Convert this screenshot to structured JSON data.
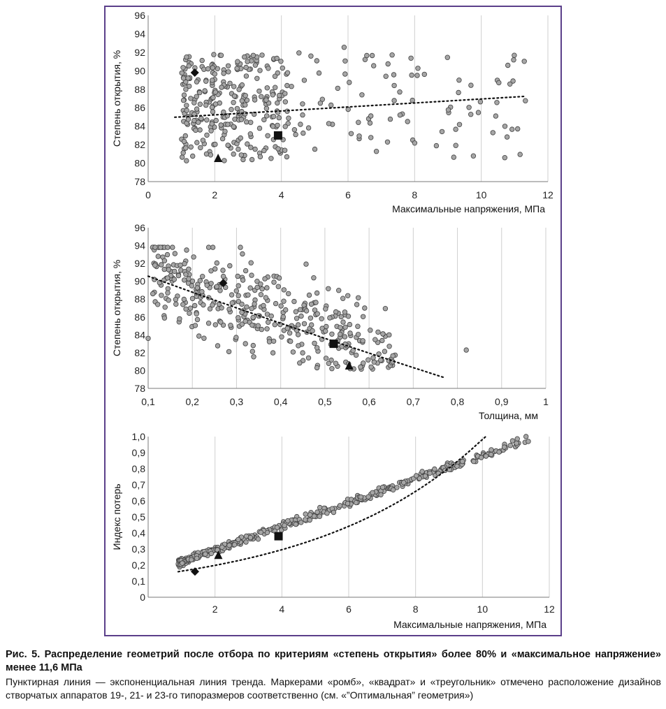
{
  "caption": {
    "title": "Рис. 5. Распределение геометрий после отбора по критериям «степень открытия» более 80% и «максимальное напряжение» менее 11,6 МПа",
    "body": "Пунктирная линия — экспоненциальная линия тренда. Маркерами «ромб», «квадрат» и «треугольник» отмечено расположение дизайнов створчатых аппаратов 19-, 21- и 23-го типоразмеров соответственно (см. «”Оптимальная” геометрия»)"
  },
  "colors": {
    "frame": "#5b3f8a",
    "point_fill": "#a6a6a6",
    "point_stroke": "#404040",
    "marker": "#111111",
    "grid": "#cfcfcf"
  },
  "chart_data": [
    {
      "type": "scatter",
      "xlabel": "Максимальные напряжения, МПа",
      "ylabel": "Степень открытия, %",
      "xlim": [
        0,
        12
      ],
      "ylim": [
        78,
        96
      ],
      "x_ticks": [
        0,
        2,
        4,
        6,
        8,
        10,
        12
      ],
      "x_tick_labels": [
        "0",
        "2",
        "4",
        "6",
        "8",
        "10",
        "12"
      ],
      "y_ticks": [
        78,
        80,
        82,
        84,
        86,
        88,
        90,
        92,
        94,
        96
      ],
      "y_tick_labels": [
        "78",
        "80",
        "82",
        "84",
        "86",
        "88",
        "90",
        "92",
        "94",
        "96"
      ],
      "grid": "vertical",
      "trend": {
        "kind": "exponential",
        "a": 84.8,
        "b": 0.0025,
        "x_range": [
          0.8,
          11.3
        ]
      },
      "cloud": {
        "count": 380,
        "seed": 11,
        "description_of_distribution": "dense at 1–4 МПа, sparse to 11.4 МПа; y 80–93"
      },
      "markers": [
        {
          "shape": "diamond",
          "x": 1.4,
          "y": 89.8
        },
        {
          "shape": "square",
          "x": 3.9,
          "y": 83.0
        },
        {
          "shape": "triangle",
          "x": 2.1,
          "y": 80.5
        }
      ]
    },
    {
      "type": "scatter",
      "xlabel": "Толщина, мм",
      "ylabel": "Степень открытия, %",
      "xlim": [
        0.1,
        1
      ],
      "ylim": [
        78,
        96
      ],
      "x_ticks": [
        0.1,
        0.2,
        0.3,
        0.4,
        0.5,
        0.6,
        0.7,
        0.8,
        0.9,
        1
      ],
      "x_tick_labels": [
        "0,1",
        "0,2",
        "0,3",
        "0,4",
        "0,5",
        "0,6",
        "0,7",
        "0,8",
        "0,9",
        "1"
      ],
      "y_ticks": [
        78,
        80,
        82,
        84,
        86,
        88,
        90,
        92,
        94,
        96
      ],
      "y_tick_labels": [
        "78",
        "80",
        "82",
        "84",
        "86",
        "88",
        "90",
        "92",
        "94",
        "96"
      ],
      "grid": "vertical",
      "trend": {
        "kind": "exponential",
        "a": 92.4,
        "b": -0.2,
        "x_range": [
          0.1,
          0.77
        ]
      },
      "cloud": {
        "count": 380,
        "seed": 23,
        "description_of_distribution": "thickness 0.1–0.66 мм, decreasing opening"
      },
      "outliers": [
        {
          "x": 0.82,
          "y": 82.3
        },
        {
          "x": 0.59,
          "y": 87.0
        },
        {
          "x": 0.1,
          "y": 83.6
        }
      ],
      "markers": [
        {
          "shape": "diamond",
          "x": 0.27,
          "y": 89.8
        },
        {
          "shape": "square",
          "x": 0.52,
          "y": 83.0
        },
        {
          "shape": "triangle",
          "x": 0.555,
          "y": 80.5
        }
      ]
    },
    {
      "type": "scatter",
      "xlabel": "Максимальные напряжения, МПа",
      "ylabel": "Индекс потерь",
      "xlim": [
        0,
        12
      ],
      "ylim": [
        0,
        1
      ],
      "x_ticks": [
        2,
        4,
        6,
        8,
        10,
        12
      ],
      "x_tick_labels": [
        "2",
        "4",
        "6",
        "8",
        "10",
        "12"
      ],
      "y_ticks": [
        0,
        0.1,
        0.2,
        0.3,
        0.4,
        0.5,
        0.6,
        0.7,
        0.8,
        0.9,
        1.0
      ],
      "y_tick_labels": [
        "0",
        "0,1",
        "0,2",
        "0,3",
        "0,4",
        "0,5",
        "0,6",
        "0,7",
        "0,8",
        "0,9",
        "1,0"
      ],
      "grid": "vertical",
      "trend": {
        "kind": "exponential",
        "a": 0.133,
        "b": 0.2,
        "x_range": [
          0.9,
          10.1
        ]
      },
      "cloud": {
        "count": 380,
        "seed": 37,
        "description_of_distribution": "near-linear band from (0.9, 0.17) to (11.4, 0.99)"
      },
      "markers": [
        {
          "shape": "diamond",
          "x": 1.4,
          "y": 0.16
        },
        {
          "shape": "square",
          "x": 3.9,
          "y": 0.38
        },
        {
          "shape": "triangle",
          "x": 2.1,
          "y": 0.26
        }
      ]
    }
  ]
}
